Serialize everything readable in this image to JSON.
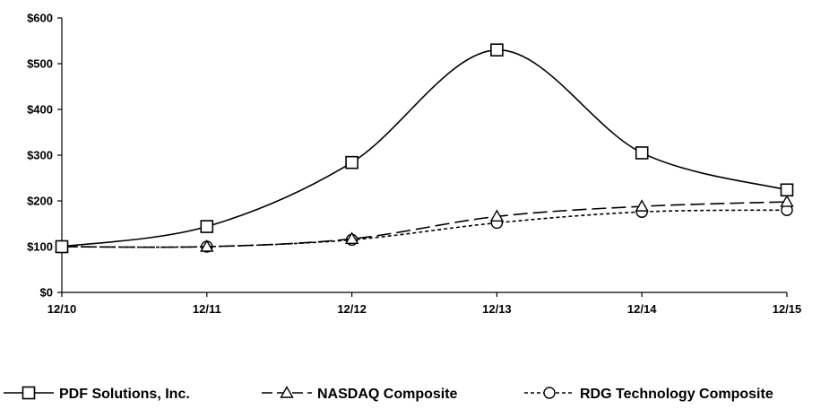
{
  "chart_data": {
    "type": "line",
    "title": "",
    "xlabel": "",
    "ylabel": "",
    "categories": [
      "12/10",
      "12/11",
      "12/12",
      "12/13",
      "12/14",
      "12/15"
    ],
    "y_ticks": [
      "$0",
      "$100",
      "$200",
      "$300",
      "$400",
      "$500",
      "$600"
    ],
    "ylim": [
      0,
      600
    ],
    "grid": false,
    "legend_position": "bottom",
    "series": [
      {
        "name": "PDF Solutions, Inc.",
        "marker": "square",
        "line_style": "solid",
        "values": [
          100,
          144,
          284,
          530,
          305,
          224
        ]
      },
      {
        "name": "NASDAQ Composite",
        "marker": "triangle",
        "line_style": "long-dash",
        "values": [
          100,
          100,
          117,
          166,
          188,
          198
        ]
      },
      {
        "name": "RDG Technology Composite",
        "marker": "circle",
        "line_style": "short-dash",
        "values": [
          100,
          100,
          115,
          152,
          176,
          180
        ]
      }
    ]
  }
}
